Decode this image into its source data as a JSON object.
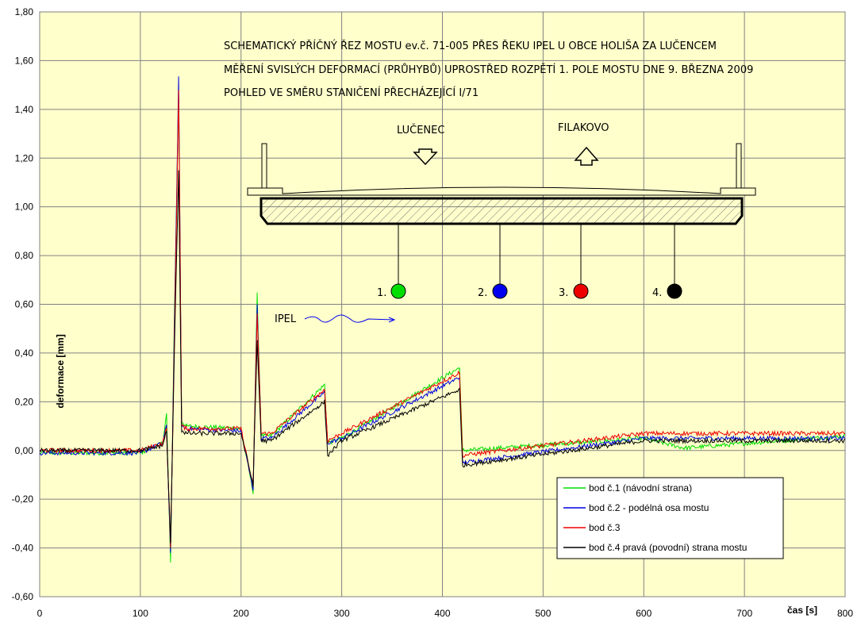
{
  "chart_data": {
    "type": "line",
    "xlabel": "čas [s]",
    "ylabel": "deformace [mm]",
    "xlim": [
      0,
      800
    ],
    "ylim": [
      -0.6,
      1.8
    ],
    "x_ticks": [
      "0",
      "100",
      "200",
      "300",
      "400",
      "500",
      "600",
      "700",
      "800"
    ],
    "y_ticks": [
      "-0,60",
      "-0,40",
      "-0,20",
      "0,00",
      "0,20",
      "0,40",
      "0,60",
      "0,80",
      "1,00",
      "1,20",
      "1,40",
      "1,60",
      "1,80"
    ],
    "grid": true,
    "legend_position": "bottom-right",
    "background": "#ffffcc",
    "series": [
      {
        "name": "bod č.1 (návodní strana)",
        "color": "#00dd00",
        "peaks": {
          "x": [
            0,
            100,
            122,
            126,
            130,
            134,
            138,
            141,
            146,
            200,
            212,
            216,
            220,
            230,
            283,
            286,
            300,
            417,
            420,
            600,
            640,
            800
          ],
          "y": [
            -0.01,
            -0.01,
            0.03,
            0.15,
            -0.46,
            0.6,
            1.45,
            0.12,
            0.1,
            0.09,
            -0.17,
            0.64,
            0.06,
            0.06,
            0.27,
            0.03,
            0.05,
            0.34,
            0.0,
            0.05,
            0.01,
            0.06
          ]
        }
      },
      {
        "name": "bod č.2 - podélná osa mostu",
        "color": "#0000dd",
        "peaks": {
          "x": [
            0,
            100,
            122,
            126,
            130,
            134,
            138,
            141,
            146,
            200,
            212,
            216,
            220,
            230,
            283,
            286,
            300,
            417,
            420,
            600,
            800
          ],
          "y": [
            -0.01,
            -0.01,
            0.03,
            0.1,
            -0.42,
            0.55,
            1.53,
            0.1,
            0.09,
            0.08,
            -0.16,
            0.6,
            0.05,
            0.05,
            0.24,
            0.03,
            0.05,
            0.3,
            -0.05,
            0.05,
            0.05
          ]
        }
      },
      {
        "name": "bod č.3",
        "color": "#ee0000",
        "peaks": {
          "x": [
            0,
            100,
            122,
            126,
            130,
            134,
            138,
            141,
            146,
            200,
            212,
            216,
            220,
            230,
            283,
            286,
            300,
            417,
            420,
            600,
            800
          ],
          "y": [
            0.0,
            0.0,
            0.03,
            0.09,
            -0.4,
            0.5,
            1.48,
            0.1,
            0.09,
            0.09,
            -0.15,
            0.56,
            0.07,
            0.07,
            0.25,
            0.04,
            0.07,
            0.32,
            -0.02,
            0.07,
            0.07
          ]
        }
      },
      {
        "name": "bod č.4 pravá (povodní) strana mostu",
        "color": "#000000",
        "peaks": {
          "x": [
            0,
            100,
            122,
            126,
            130,
            134,
            138,
            141,
            146,
            200,
            212,
            216,
            220,
            230,
            283,
            286,
            300,
            417,
            420,
            600,
            800
          ],
          "y": [
            0.0,
            0.0,
            0.02,
            0.08,
            -0.38,
            0.45,
            1.15,
            0.08,
            0.07,
            0.07,
            -0.14,
            0.45,
            0.04,
            0.04,
            0.2,
            -0.02,
            0.04,
            0.25,
            -0.06,
            0.04,
            0.04
          ]
        }
      }
    ]
  },
  "schematic": {
    "title_lines": [
      "SCHEMATICKÝ PŘÍČNÝ ŘEZ MOSTU ev.č. 71-005 PŘES ŘEKU  IPEL U OBCE HOLIŠA ZA LUČENCEM",
      "MĚŘENÍ SVISLÝCH DEFORMACÍ (PRŮHYBŮ) UPROSTŘED ROZPĚTÍ 1. POLE MOSTU DNE 9. BŘEZNA 2009",
      "POHLED VE SMĚRU STANIČENÍ PŘECHÁZEJÍCÍ I/71"
    ],
    "direction_left": "LUČENEC",
    "direction_right": "FILAKOVO",
    "river_label": "IPEL",
    "points": [
      {
        "label": "1.",
        "color": "#00dd00"
      },
      {
        "label": "2.",
        "color": "#0000ee"
      },
      {
        "label": "3.",
        "color": "#ee0000"
      },
      {
        "label": "4.",
        "color": "#000000"
      }
    ]
  }
}
